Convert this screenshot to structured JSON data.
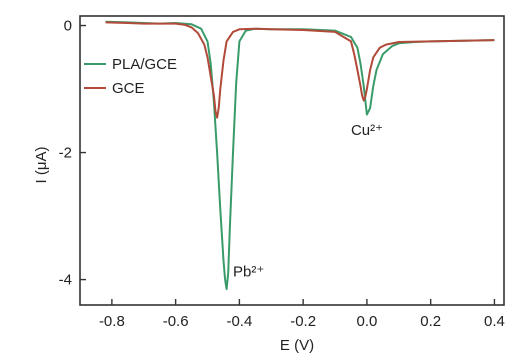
{
  "chart_data": {
    "type": "line",
    "xlabel": "E (V)",
    "ylabel": "I (μA)",
    "xlim": [
      -0.9,
      0.43
    ],
    "ylim": [
      -4.4,
      0.15
    ],
    "xticks": [
      -0.8,
      -0.6,
      -0.4,
      -0.2,
      0.0,
      0.2,
      0.4
    ],
    "xtick_labels": [
      "-0.8",
      "-0.6",
      "-0.4",
      "-0.2",
      "0.0",
      "0.2",
      "0.4"
    ],
    "yticks": [
      0,
      -2,
      -4
    ],
    "ytick_labels": [
      "0",
      "-2",
      "-4"
    ],
    "legend": {
      "placement": "top-left",
      "entries": [
        "PLA/GCE",
        "GCE"
      ]
    },
    "series": [
      {
        "name": "PLA/GCE",
        "color": "#3a9b6a",
        "x": [
          -0.82,
          -0.75,
          -0.7,
          -0.65,
          -0.6,
          -0.55,
          -0.52,
          -0.5,
          -0.49,
          -0.48,
          -0.47,
          -0.46,
          -0.45,
          -0.445,
          -0.44,
          -0.435,
          -0.43,
          -0.42,
          -0.41,
          -0.4,
          -0.38,
          -0.35,
          -0.3,
          -0.2,
          -0.1,
          -0.05,
          -0.03,
          -0.02,
          -0.01,
          0.0,
          0.01,
          0.02,
          0.03,
          0.05,
          0.08,
          0.1,
          0.15,
          0.2,
          0.3,
          0.4
        ],
        "y": [
          0.06,
          0.05,
          0.04,
          0.03,
          0.04,
          0.02,
          -0.05,
          -0.25,
          -0.6,
          -1.2,
          -2.0,
          -2.9,
          -3.7,
          -4.0,
          -4.15,
          -3.9,
          -3.2,
          -2.0,
          -0.9,
          -0.25,
          -0.08,
          -0.05,
          -0.06,
          -0.06,
          -0.08,
          -0.18,
          -0.35,
          -0.6,
          -0.95,
          -1.4,
          -1.3,
          -0.95,
          -0.7,
          -0.45,
          -0.32,
          -0.28,
          -0.26,
          -0.25,
          -0.24,
          -0.23
        ]
      },
      {
        "name": "GCE",
        "color": "#b24a3a",
        "x": [
          -0.82,
          -0.75,
          -0.7,
          -0.65,
          -0.6,
          -0.57,
          -0.55,
          -0.53,
          -0.51,
          -0.5,
          -0.49,
          -0.48,
          -0.475,
          -0.47,
          -0.465,
          -0.46,
          -0.45,
          -0.44,
          -0.42,
          -0.4,
          -0.35,
          -0.3,
          -0.2,
          -0.1,
          -0.05,
          -0.04,
          -0.03,
          -0.02,
          -0.015,
          -0.01,
          -0.005,
          0.0,
          0.01,
          0.02,
          0.04,
          0.06,
          0.1,
          0.2,
          0.3,
          0.4
        ],
        "y": [
          0.05,
          0.04,
          0.03,
          0.03,
          0.03,
          0.01,
          -0.03,
          -0.12,
          -0.3,
          -0.5,
          -0.8,
          -1.1,
          -1.35,
          -1.45,
          -1.3,
          -1.0,
          -0.55,
          -0.25,
          -0.1,
          -0.06,
          -0.05,
          -0.06,
          -0.07,
          -0.1,
          -0.25,
          -0.45,
          -0.7,
          -0.95,
          -1.1,
          -1.18,
          -1.12,
          -1.0,
          -0.7,
          -0.5,
          -0.35,
          -0.3,
          -0.26,
          -0.25,
          -0.24,
          -0.23
        ]
      }
    ],
    "annotations": [
      {
        "text": "Pb²⁺",
        "x": -0.42,
        "y": -3.95
      },
      {
        "text": "Cu²⁺",
        "x": -0.05,
        "y": -1.72
      }
    ]
  }
}
